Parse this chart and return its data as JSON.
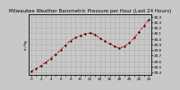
{
  "title": "Milwaukee Weather Barometric Pressure per Hour (Last 24 Hours)",
  "background_color": "#c8c8c8",
  "plot_bg_color": "#c8c8c8",
  "line_color": "#ff0000",
  "marker_color": "#000000",
  "grid_color": "#888888",
  "hours": [
    0,
    1,
    2,
    3,
    4,
    5,
    6,
    7,
    8,
    9,
    10,
    11,
    12,
    13,
    14,
    15,
    16,
    17,
    18,
    19,
    20,
    21,
    22,
    23,
    24
  ],
  "pressure": [
    29.42,
    29.46,
    29.52,
    29.58,
    29.65,
    29.72,
    29.8,
    29.89,
    29.97,
    30.02,
    30.06,
    30.09,
    30.11,
    30.08,
    30.01,
    29.96,
    29.91,
    29.87,
    29.83,
    29.87,
    29.93,
    30.02,
    30.13,
    30.24,
    30.35
  ],
  "ylim_min": 29.35,
  "ylim_max": 30.45,
  "ytick_values": [
    29.4,
    29.5,
    29.6,
    29.7,
    29.8,
    29.9,
    30.0,
    30.1,
    30.2,
    30.3,
    30.4
  ],
  "ytick_labels": [
    "29.4",
    "29.5",
    "29.6",
    "29.7",
    "29.8",
    "29.9",
    "30.0",
    "30.1",
    "30.2",
    "30.3",
    "30.4"
  ],
  "xtick_positions": [
    0,
    1,
    2,
    3,
    4,
    5,
    6,
    7,
    8,
    9,
    10,
    11,
    12,
    13,
    14,
    15,
    16,
    17,
    18,
    19,
    20,
    21,
    22,
    23,
    24
  ],
  "xtick_labels": [
    "0",
    "",
    "2",
    "",
    "4",
    "",
    "6",
    "",
    "8",
    "",
    "10",
    "",
    "12",
    "",
    "14",
    "",
    "16",
    "",
    "18",
    "",
    "20",
    "",
    "22",
    "",
    "24"
  ],
  "title_fontsize": 4.0,
  "tick_fontsize": 3.0,
  "line_width": 0.7,
  "marker_size": 1.2,
  "left_label": "in Hg"
}
